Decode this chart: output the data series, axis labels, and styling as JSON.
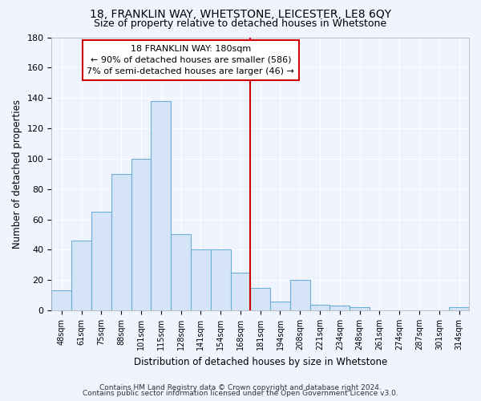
{
  "title": "18, FRANKLIN WAY, WHETSTONE, LEICESTER, LE8 6QY",
  "subtitle": "Size of property relative to detached houses in Whetstone",
  "xlabel": "Distribution of detached houses by size in Whetstone",
  "ylabel": "Number of detached properties",
  "categories": [
    "48sqm",
    "61sqm",
    "75sqm",
    "88sqm",
    "101sqm",
    "115sqm",
    "128sqm",
    "141sqm",
    "154sqm",
    "168sqm",
    "181sqm",
    "194sqm",
    "208sqm",
    "221sqm",
    "234sqm",
    "248sqm",
    "261sqm",
    "274sqm",
    "287sqm",
    "301sqm",
    "314sqm"
  ],
  "values": [
    13,
    46,
    65,
    90,
    100,
    138,
    50,
    40,
    40,
    25,
    15,
    6,
    20,
    4,
    3,
    2,
    0,
    0,
    0,
    0,
    2
  ],
  "bar_color": "#d6e4f7",
  "bar_edge_color": "#6baed6",
  "vline_color": "#cc0000",
  "annotation_title": "18 FRANKLIN WAY: 180sqm",
  "annotation_line2": "← 90% of detached houses are smaller (586)",
  "annotation_line3": "7% of semi-detached houses are larger (46) →",
  "annotation_box_color": "#cc0000",
  "background_color": "#f0f4ff",
  "plot_bg_color": "#f0f4ff",
  "ylim": [
    0,
    180
  ],
  "yticks": [
    0,
    20,
    40,
    60,
    80,
    100,
    120,
    140,
    160,
    180
  ],
  "vline_index": 10,
  "footer_line1": "Contains HM Land Registry data © Crown copyright and database right 2024.",
  "footer_line2": "Contains public sector information licensed under the Open Government Licence v3.0."
}
